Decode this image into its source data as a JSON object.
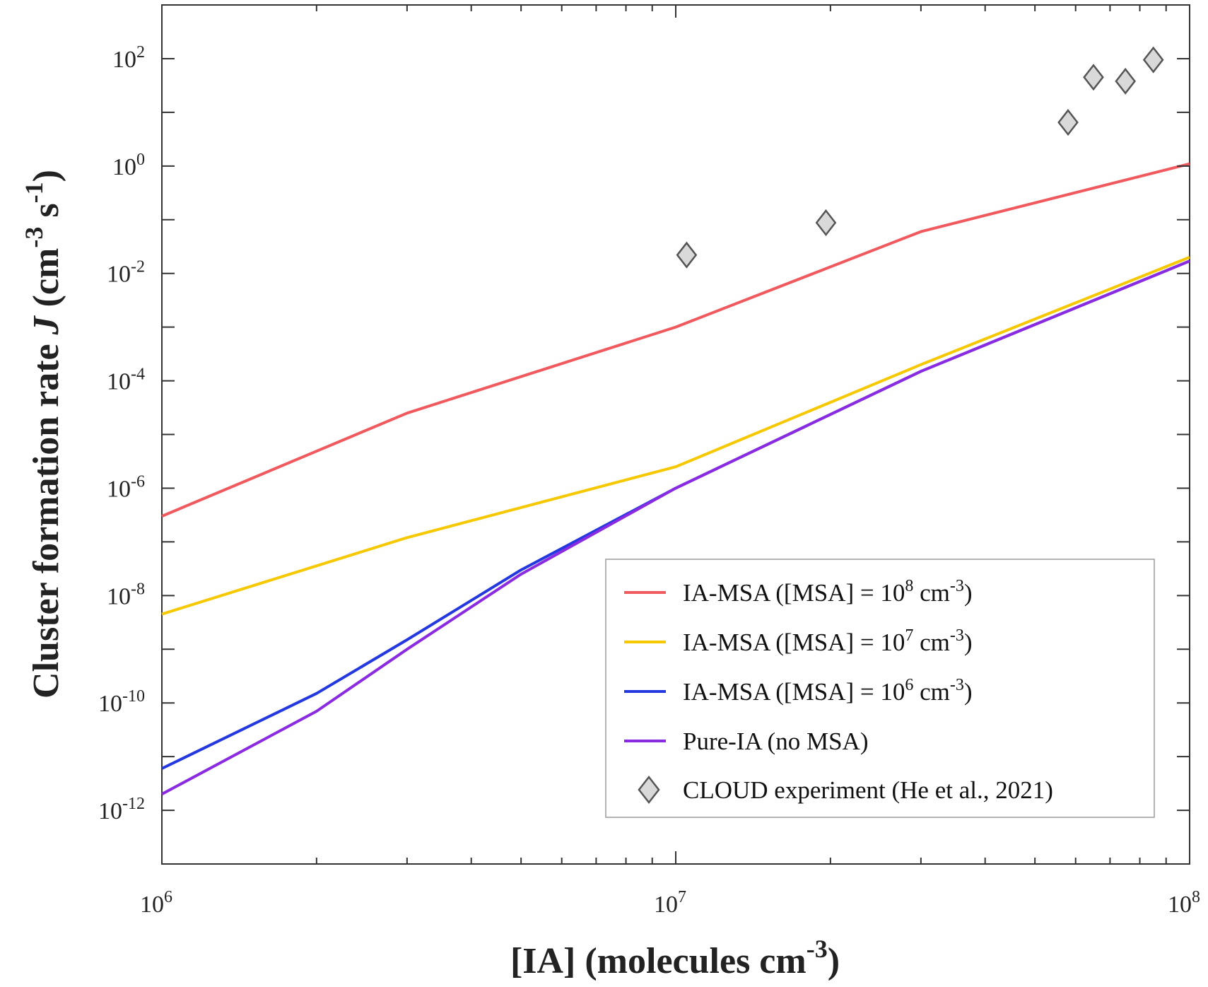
{
  "chart_data": {
    "type": "line",
    "xlabel": {
      "pre": "[IA] (molecules cm",
      "sup": "-3",
      "post": ")"
    },
    "ylabel": {
      "pre": "Cluster formation rate ",
      "italic": "J",
      "mid1": " (cm",
      "sup1": "-3",
      "mid2": " s",
      "sup2": "-1",
      "post": ")"
    },
    "x_scale": "log",
    "y_scale": "log",
    "xlim": [
      1000000,
      100000000
    ],
    "ylim": [
      1e-13,
      1000
    ],
    "x_ticks": [
      {
        "value": 1000000,
        "base": "10",
        "exp": "6"
      },
      {
        "value": 10000000,
        "base": "10",
        "exp": "7"
      },
      {
        "value": 100000000,
        "base": "10",
        "exp": "8"
      }
    ],
    "y_ticks": [
      {
        "value": 1e-12,
        "base": "10",
        "exp": "-12"
      },
      {
        "value": 1e-10,
        "base": "10",
        "exp": "-10"
      },
      {
        "value": 1e-08,
        "base": "10",
        "exp": "-8"
      },
      {
        "value": 1e-06,
        "base": "10",
        "exp": "-6"
      },
      {
        "value": 0.0001,
        "base": "10",
        "exp": "-4"
      },
      {
        "value": 0.01,
        "base": "10",
        "exp": "-2"
      },
      {
        "value": 1,
        "base": "10",
        "exp": "0"
      },
      {
        "value": 100,
        "base": "10",
        "exp": "2"
      }
    ],
    "grid": false,
    "legend_position": "bottom-right",
    "series": [
      {
        "kind": "line",
        "label": {
          "pre": "IA-MSA ([MSA] = 10",
          "sup1": "8",
          "mid": " cm",
          "sup2": "-3",
          "post": ")"
        },
        "color": "#f0595e",
        "x": [
          1000000,
          3000000,
          10000000,
          30000000,
          100000000
        ],
        "y": [
          3e-07,
          2.5e-05,
          0.001,
          0.06,
          1.1
        ]
      },
      {
        "kind": "line",
        "label": {
          "pre": "IA-MSA ([MSA] = 10",
          "sup1": "7",
          "mid": " cm",
          "sup2": "-3",
          "post": ")"
        },
        "color": "#f5c800",
        "x": [
          1000000,
          3000000,
          10000000,
          30000000,
          100000000
        ],
        "y": [
          4.5e-09,
          1.2e-07,
          2.5e-06,
          0.0002,
          0.02
        ]
      },
      {
        "kind": "line",
        "label": {
          "pre": "IA-MSA ([MSA] = 10",
          "sup1": "6",
          "mid": " cm",
          "sup2": "-3",
          "post": ")"
        },
        "color": "#2438e0",
        "x": [
          1000000,
          2000000,
          3000000,
          5000000,
          10000000,
          30000000,
          100000000
        ],
        "y": [
          6e-12,
          1.5e-10,
          1.5e-09,
          3e-08,
          1e-06,
          0.00015,
          0.017
        ]
      },
      {
        "kind": "line",
        "label": {
          "pre": "Pure-IA  (no MSA)",
          "sup1": "",
          "mid": "",
          "sup2": "",
          "post": ""
        },
        "color": "#8a2be2",
        "x": [
          1000000,
          2000000,
          3000000,
          5000000,
          10000000,
          30000000,
          100000000
        ],
        "y": [
          2e-12,
          7e-11,
          1e-09,
          2.5e-08,
          1e-06,
          0.00015,
          0.017
        ]
      },
      {
        "kind": "scatter",
        "marker": "diamond",
        "label": {
          "pre": "CLOUD experiment (He et al., 2021)",
          "sup1": "",
          "mid": "",
          "sup2": "",
          "post": ""
        },
        "color": "#d9d9d9",
        "edge_color": "#555555",
        "x": [
          10500000,
          19600000,
          58000000,
          65000000,
          75000000,
          85000000
        ],
        "y": [
          0.022,
          0.088,
          6.5,
          45,
          38,
          95
        ]
      }
    ]
  }
}
